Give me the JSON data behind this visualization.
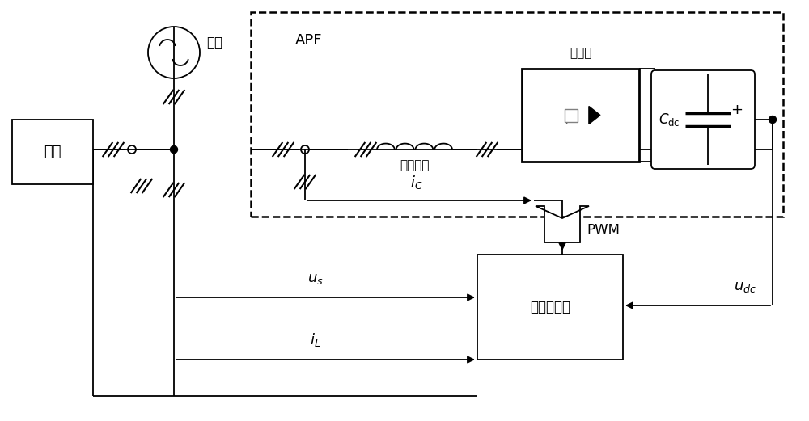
{
  "bg_color": "#ffffff",
  "line_color": "#000000",
  "labels": {
    "diangwang": "电网",
    "APF": "APF",
    "bianliu": "变流器",
    "lvbodian": "滤波电感",
    "fuzhao": "负载",
    "jiance": "检测控制器",
    "PWM": "PWM",
    "iC": "$i_C$",
    "us": "$u_s$",
    "iL": "$i_L$",
    "Cdc": "$C_{\\mathrm{dc}}$",
    "udc": "$u_{dc}$"
  }
}
